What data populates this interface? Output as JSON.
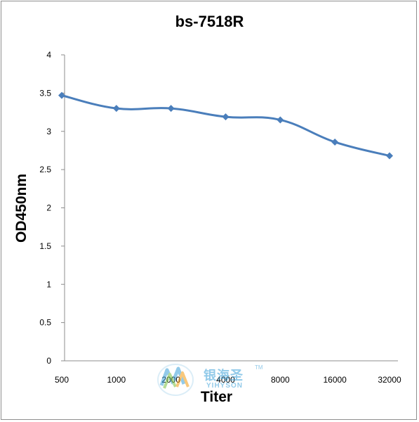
{
  "chart_data": {
    "type": "line",
    "title": "bs-7518R",
    "xlabel": "Titer",
    "ylabel": "OD450nm",
    "categories": [
      "500",
      "1000",
      "2000",
      "4000",
      "8000",
      "16000",
      "32000"
    ],
    "series": [
      {
        "values": [
          3.47,
          3.3,
          3.3,
          3.19,
          3.15,
          2.86,
          2.68
        ]
      }
    ],
    "ylim": [
      0,
      4
    ],
    "yticks": [
      "0",
      "0.5",
      "1",
      "1.5",
      "2",
      "2.5",
      "3",
      "3.5",
      "4"
    ],
    "grid": false,
    "legend": "none"
  },
  "colors": {
    "series": "#4a7ebb",
    "axis": "#8c8c8c"
  },
  "watermark": {
    "text_cn": "银海圣",
    "text_en": "YIHYSON",
    "tm": "TM"
  }
}
